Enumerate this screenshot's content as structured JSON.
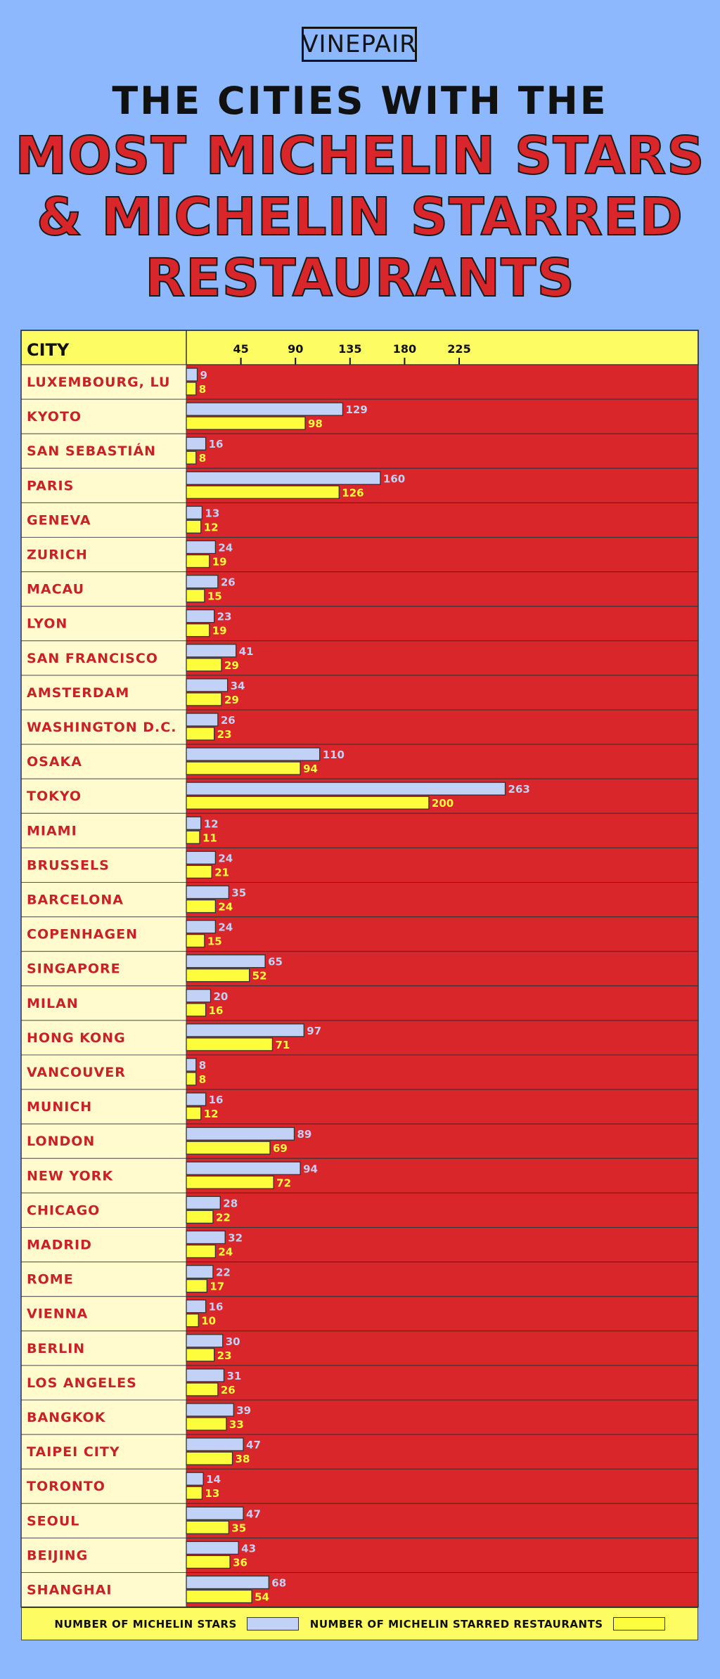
{
  "logo": "VINEPAIR",
  "title": {
    "line1": "THE CITIES WITH THE",
    "line2": "MOST MICHELIN STARS",
    "line3": "& MICHELIN STARRED",
    "line4": "RESTAURANTS"
  },
  "legend": {
    "stars": "NUMBER OF MICHELIN STARS",
    "restaurants": "NUMBER OF MICHELIN STARRED RESTAURANTS"
  },
  "colors": {
    "background": "#8db8fd",
    "row_background": "#d9262a",
    "city_cell": "#fffbcf",
    "header": "#fdfc63",
    "stars_bar": "#c2d2f7",
    "restaurants_bar": "#fdfc3d",
    "city_text": "#c82226"
  },
  "chart_data": {
    "type": "bar",
    "orientation": "horizontal",
    "category_header": "CITY",
    "categories": [
      "LUXEMBOURG, LU",
      "KYOTO",
      "SAN SEBASTIÁN",
      "PARIS",
      "GENEVA",
      "ZURICH",
      "MACAU",
      "LYON",
      "SAN FRANCISCO",
      "AMSTERDAM",
      "WASHINGTON D.C.",
      "OSAKA",
      "TOKYO",
      "MIAMI",
      "BRUSSELS",
      "BARCELONA",
      "COPENHAGEN",
      "SINGAPORE",
      "MILAN",
      "HONG KONG",
      "VANCOUVER",
      "MUNICH",
      "LONDON",
      "NEW YORK",
      "CHICAGO",
      "MADRID",
      "ROME",
      "VIENNA",
      "BERLIN",
      "LOS ANGELES",
      "BANGKOK",
      "TAIPEI CITY",
      "TORONTO",
      "SEOUL",
      "BEIJING",
      "SHANGHAI"
    ],
    "series": [
      {
        "name": "NUMBER OF MICHELIN STARS",
        "values": [
          9,
          129,
          16,
          160,
          13,
          24,
          26,
          23,
          41,
          34,
          26,
          110,
          263,
          12,
          24,
          35,
          24,
          65,
          20,
          97,
          8,
          16,
          89,
          94,
          28,
          32,
          22,
          16,
          30,
          31,
          39,
          47,
          14,
          47,
          43,
          68
        ]
      },
      {
        "name": "NUMBER OF MICHELIN STARRED RESTAURANTS",
        "values": [
          8,
          98,
          8,
          126,
          12,
          19,
          15,
          19,
          29,
          29,
          23,
          94,
          200,
          11,
          21,
          24,
          15,
          52,
          16,
          71,
          8,
          12,
          69,
          72,
          22,
          24,
          17,
          10,
          23,
          26,
          33,
          38,
          13,
          35,
          36,
          54
        ]
      }
    ],
    "x_ticks": [
      45,
      90,
      135,
      180,
      225
    ],
    "xlim": [
      0,
      270
    ],
    "legend_position": "bottom"
  }
}
